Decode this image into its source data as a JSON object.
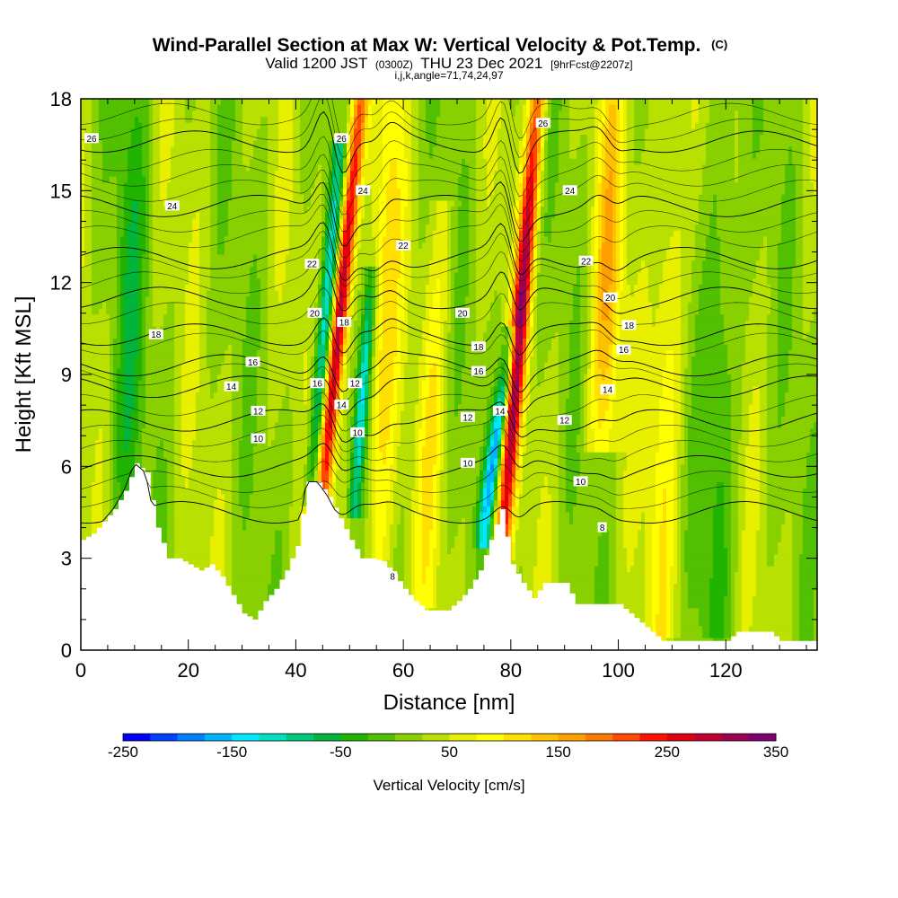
{
  "title": {
    "main": "Wind-Parallel Section at Max W: Vertical Velocity & Pot.Temp.",
    "main_suffix": "(C)",
    "line2_a": "Valid 1200 JST",
    "line2_b": "(0300Z)",
    "line2_c": "THU 23 Dec 2021",
    "line2_d": "[9hrFcst@2207z]",
    "line3": "i,j,k,angle=71,74,24,97"
  },
  "chart_data": {
    "type": "heatmap",
    "xlabel": "Distance [nm]",
    "ylabel": "Height [Kft MSL]",
    "xlim": [
      0,
      137
    ],
    "ylim": [
      0,
      18
    ],
    "x_ticks": [
      "0",
      "20",
      "40",
      "60",
      "80",
      "100",
      "120"
    ],
    "y_ticks": [
      "0",
      "3",
      "6",
      "9",
      "12",
      "15",
      "18"
    ],
    "x_tick_values": [
      0,
      20,
      40,
      60,
      80,
      100,
      120
    ],
    "y_tick_values": [
      0,
      3,
      6,
      9,
      12,
      15,
      18
    ],
    "colorbar": {
      "label": "Vertical Velocity [cm/s]",
      "min": -250,
      "max": 350,
      "step": 25,
      "tick_labels": [
        "-250",
        "-150",
        "-50",
        "50",
        "150",
        "250",
        "350"
      ],
      "tick_values": [
        -250,
        -150,
        -50,
        50,
        150,
        250,
        350
      ],
      "colors": [
        "#0000ff",
        "#0040ff",
        "#0080ff",
        "#00b4ff",
        "#00e8ff",
        "#00e0c0",
        "#00c878",
        "#00b43c",
        "#20b400",
        "#50c000",
        "#88d000",
        "#b8e000",
        "#e8f000",
        "#ffff00",
        "#ffe000",
        "#ffc000",
        "#ffa000",
        "#ff7800",
        "#ff4800",
        "#ff1000",
        "#e00010",
        "#c00030",
        "#a00050",
        "#800070"
      ]
    },
    "terrain_profile": {
      "x": [
        0,
        2,
        4,
        6,
        8,
        10,
        12,
        14,
        16,
        18,
        20,
        22,
        24,
        26,
        28,
        30,
        32,
        34,
        36,
        38,
        40,
        42,
        44,
        46,
        48,
        50,
        52,
        54,
        56,
        58,
        60,
        62,
        64,
        66,
        68,
        70,
        72,
        74,
        76,
        78,
        80,
        82,
        84,
        86,
        88,
        90,
        92,
        94,
        96,
        98,
        100,
        102,
        104,
        106,
        108,
        110,
        112,
        114,
        116,
        118,
        120,
        122,
        124,
        126,
        128,
        130,
        132,
        134,
        137
      ],
      "height_kft": [
        3.6,
        3.8,
        4.2,
        4.6,
        5.2,
        6.1,
        5.8,
        4.0,
        3.0,
        3.0,
        2.8,
        2.6,
        2.8,
        2.4,
        1.8,
        1.2,
        1.0,
        1.6,
        2.0,
        2.6,
        3.4,
        5.5,
        5.5,
        5.0,
        4.3,
        3.6,
        3.0,
        3.0,
        2.9,
        2.5,
        2.0,
        1.6,
        1.3,
        1.3,
        1.3,
        1.6,
        2.0,
        2.6,
        3.6,
        4.6,
        2.8,
        2.2,
        1.7,
        2.2,
        2.2,
        2.2,
        1.5,
        1.5,
        1.5,
        1.5,
        1.5,
        1.2,
        0.9,
        0.6,
        0.3,
        0.3,
        0.3,
        0.3,
        0.3,
        0.3,
        0.3,
        0.6,
        0.6,
        0.6,
        0.6,
        0.3,
        0.3,
        0.3,
        0.3
      ]
    },
    "updrafts": [
      {
        "x_low": 45,
        "x_high": 52,
        "y_low": 5.2,
        "y_high": 18,
        "peak": 300,
        "width_nm": 1.6
      },
      {
        "x_low": 78.5,
        "x_high": 85,
        "y_low": 3.6,
        "y_high": 18,
        "peak": 280,
        "width_nm": 1.6
      },
      {
        "x_low": 97,
        "x_high": 99,
        "y_low": 7,
        "y_high": 18,
        "peak": 110,
        "width_nm": 2.8
      },
      {
        "x_low": 55,
        "x_high": 58,
        "y_low": 3,
        "y_high": 18,
        "peak": 90,
        "width_nm": 2.6
      },
      {
        "x_low": 108,
        "x_high": 110,
        "y_low": 1,
        "y_high": 18,
        "peak": 70,
        "width_nm": 3
      },
      {
        "x_low": 64,
        "x_high": 67,
        "y_low": 2,
        "y_high": 14,
        "peak": 60,
        "width_nm": 2.5
      }
    ],
    "downdrafts": [
      {
        "x_low": 43,
        "x_high": 48,
        "y_low": 5.2,
        "y_high": 16,
        "peak": -160,
        "width_nm": 1.5
      },
      {
        "x_low": 51,
        "x_high": 54,
        "y_low": 5,
        "y_high": 12,
        "peak": -140,
        "width_nm": 1.2
      },
      {
        "x_low": 75,
        "x_high": 80,
        "y_low": 4,
        "y_high": 10,
        "peak": -190,
        "width_nm": 1.4
      },
      {
        "x_low": 8,
        "x_high": 10,
        "y_low": 4,
        "y_high": 18,
        "peak": -60,
        "width_nm": 3
      },
      {
        "x_low": 118,
        "x_high": 120,
        "y_low": 1,
        "y_high": 18,
        "peak": -60,
        "width_nm": 3
      }
    ],
    "theta_contours": {
      "levels": [
        8,
        10,
        12,
        14,
        16,
        18,
        20,
        22,
        24,
        26
      ],
      "base_height_kft": [
        4.5,
        6.0,
        7.5,
        8.6,
        9.3,
        10.3,
        11.5,
        12.8,
        14.5,
        16.6
      ]
    },
    "contour_labels": [
      {
        "text": "26",
        "x": 2,
        "y": 16.7
      },
      {
        "text": "24",
        "x": 17,
        "y": 14.5
      },
      {
        "text": "18",
        "x": 14,
        "y": 10.3
      },
      {
        "text": "16",
        "x": 32,
        "y": 9.4
      },
      {
        "text": "14",
        "x": 28,
        "y": 8.6
      },
      {
        "text": "12",
        "x": 33,
        "y": 7.8
      },
      {
        "text": "10",
        "x": 33,
        "y": 6.9
      },
      {
        "text": "26",
        "x": 48.5,
        "y": 16.7
      },
      {
        "text": "24",
        "x": 52.5,
        "y": 15.0
      },
      {
        "text": "22",
        "x": 43,
        "y": 12.6
      },
      {
        "text": "20",
        "x": 43.5,
        "y": 11.0
      },
      {
        "text": "18",
        "x": 49,
        "y": 10.7
      },
      {
        "text": "16",
        "x": 44,
        "y": 8.7
      },
      {
        "text": "12",
        "x": 51,
        "y": 8.7
      },
      {
        "text": "14",
        "x": 48.5,
        "y": 8.0
      },
      {
        "text": "10",
        "x": 51.5,
        "y": 7.1
      },
      {
        "text": "22",
        "x": 60,
        "y": 13.2
      },
      {
        "text": "20",
        "x": 71,
        "y": 11.0
      },
      {
        "text": "18",
        "x": 74,
        "y": 9.9
      },
      {
        "text": "16",
        "x": 74,
        "y": 9.1
      },
      {
        "text": "12",
        "x": 72,
        "y": 7.6
      },
      {
        "text": "14",
        "x": 78,
        "y": 7.8
      },
      {
        "text": "10",
        "x": 72,
        "y": 6.1
      },
      {
        "text": "8",
        "x": 58,
        "y": 2.4
      },
      {
        "text": "26",
        "x": 86,
        "y": 17.2
      },
      {
        "text": "24",
        "x": 91,
        "y": 15.0
      },
      {
        "text": "22",
        "x": 94,
        "y": 12.7
      },
      {
        "text": "20",
        "x": 98.5,
        "y": 11.5
      },
      {
        "text": "18",
        "x": 102,
        "y": 10.6
      },
      {
        "text": "16",
        "x": 101,
        "y": 9.8
      },
      {
        "text": "14",
        "x": 98,
        "y": 8.5
      },
      {
        "text": "12",
        "x": 90,
        "y": 7.5
      },
      {
        "text": "10",
        "x": 93,
        "y": 5.5
      },
      {
        "text": "8",
        "x": 97,
        "y": 4.0
      }
    ]
  }
}
